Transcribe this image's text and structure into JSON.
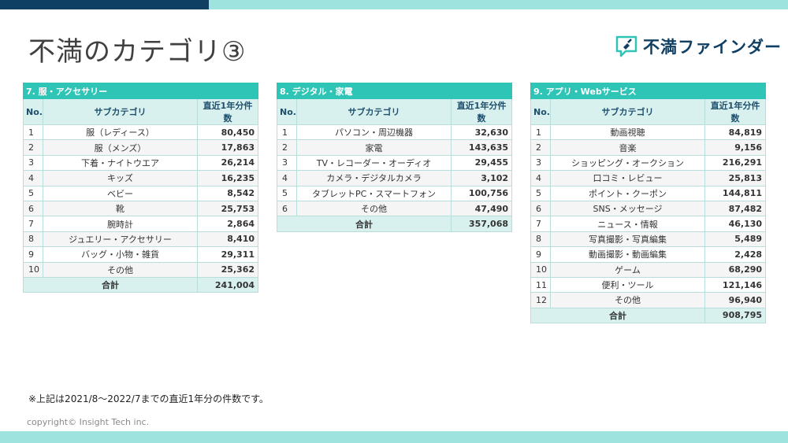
{
  "page": {
    "title": "不満のカテゴリ③",
    "logo_text": "不満ファインダー",
    "note": "※上記は2021/8～2022/7までの直近1年分の件数です。",
    "copyright": "copyright© Insight Tech inc."
  },
  "colors": {
    "accent": "#2ec4b6",
    "dark_blue": "#0f3f63",
    "light_teal": "#9fe3df",
    "header_bg": "#d8f1ef"
  },
  "tables": [
    {
      "title": "7. 服・アクセサリー",
      "headers": [
        "No.",
        "サブカテゴリ",
        "直近1年分件数"
      ],
      "rows": [
        [
          "1",
          "服（レディース）",
          "80,450"
        ],
        [
          "2",
          "服（メンズ）",
          "17,863"
        ],
        [
          "3",
          "下着・ナイトウエア",
          "26,214"
        ],
        [
          "4",
          "キッズ",
          "16,235"
        ],
        [
          "5",
          "ベビー",
          "8,542"
        ],
        [
          "6",
          "靴",
          "25,753"
        ],
        [
          "7",
          "腕時計",
          "2,864"
        ],
        [
          "8",
          "ジュエリー・アクセサリー",
          "8,410"
        ],
        [
          "9",
          "バッグ・小物・雑貨",
          "29,311"
        ],
        [
          "10",
          "その他",
          "25,362"
        ]
      ],
      "total_label": "合計",
      "total_value": "241,004"
    },
    {
      "title": "8. デジタル・家電",
      "headers": [
        "No.",
        "サブカテゴリ",
        "直近1年分件数"
      ],
      "rows": [
        [
          "1",
          "パソコン・周辺機器",
          "32,630"
        ],
        [
          "2",
          "家電",
          "143,635"
        ],
        [
          "3",
          "TV・レコーダー・オーディオ",
          "29,455"
        ],
        [
          "4",
          "カメラ・デジタルカメラ",
          "3,102"
        ],
        [
          "5",
          "タブレットPC・スマートフォン",
          "100,756"
        ],
        [
          "6",
          "その他",
          "47,490"
        ]
      ],
      "total_label": "合計",
      "total_value": "357,068"
    },
    {
      "title": "9. アプリ・Webサービス",
      "headers": [
        "No.",
        "サブカテゴリ",
        "直近1年分件数"
      ],
      "rows": [
        [
          "1",
          "動画視聴",
          "84,819"
        ],
        [
          "2",
          "音楽",
          "9,156"
        ],
        [
          "3",
          "ショッピング・オークション",
          "216,291"
        ],
        [
          "4",
          "口コミ・レビュー",
          "25,813"
        ],
        [
          "5",
          "ポイント・クーポン",
          "144,811"
        ],
        [
          "6",
          "SNS・メッセージ",
          "87,482"
        ],
        [
          "7",
          "ニュース・情報",
          "46,130"
        ],
        [
          "8",
          "写真撮影・写真編集",
          "5,489"
        ],
        [
          "9",
          "動画撮影・動画編集",
          "2,428"
        ],
        [
          "10",
          "ゲーム",
          "68,290"
        ],
        [
          "11",
          "便利・ツール",
          "121,146"
        ],
        [
          "12",
          "その他",
          "96,940"
        ]
      ],
      "total_label": "合計",
      "total_value": "908,795"
    }
  ]
}
